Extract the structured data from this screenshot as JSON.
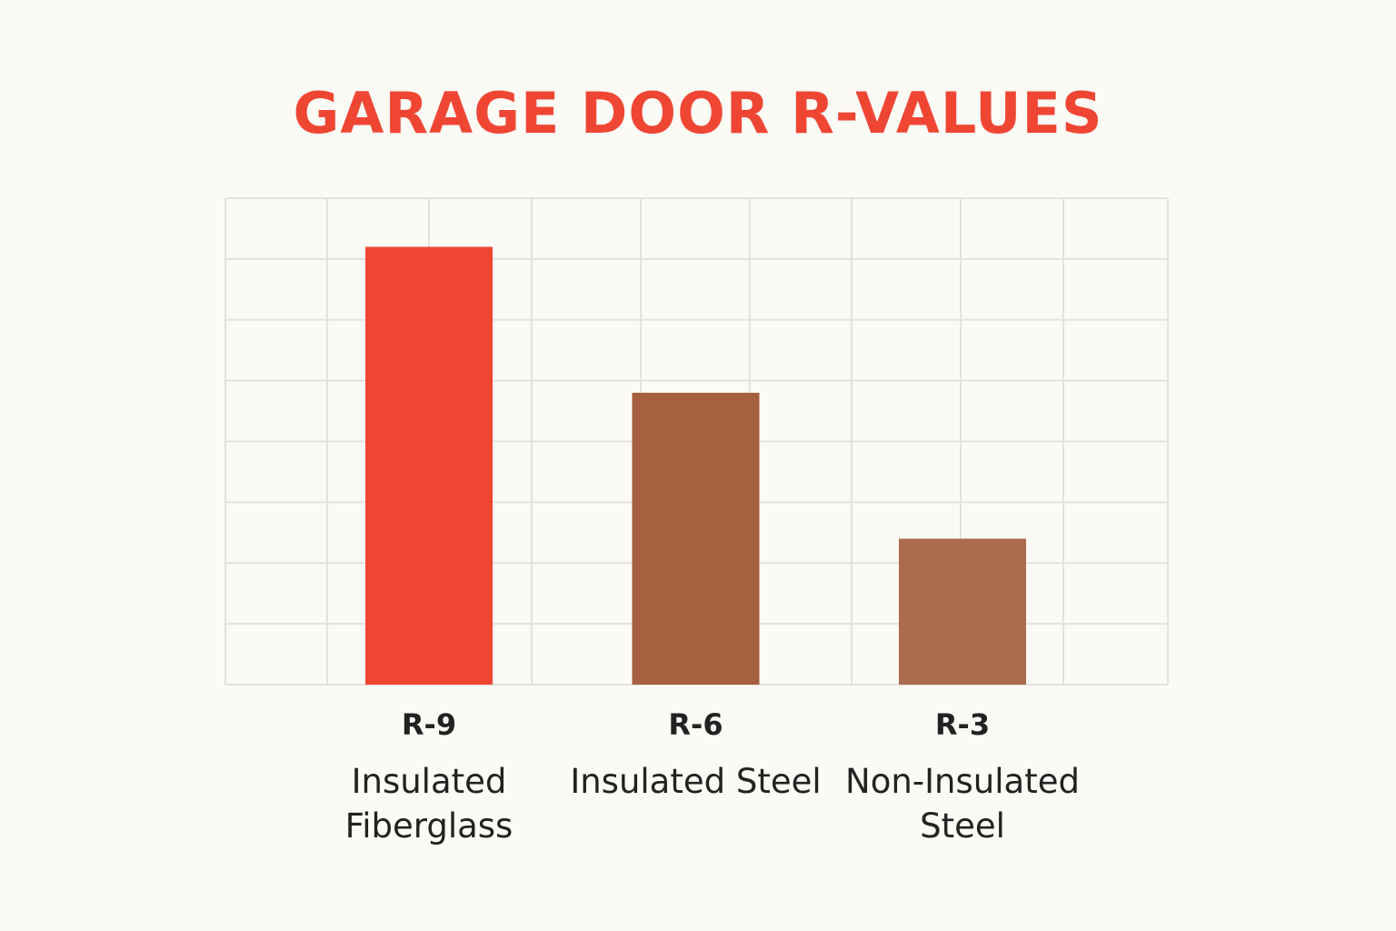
{
  "chart_data": {
    "type": "bar",
    "title": "GARAGE DOOR R-VALUES",
    "categories": [
      "Insulated Fiberglass",
      "Insulated Steel",
      "Non-Insulated Steel"
    ],
    "values": [
      9,
      6,
      3
    ],
    "value_labels": [
      "R-9",
      "R-6",
      "R-3"
    ],
    "colors": [
      "#ef4634",
      "#a65f3f",
      "#ab6b4d"
    ],
    "ylim": [
      0,
      10
    ],
    "grid": true
  }
}
